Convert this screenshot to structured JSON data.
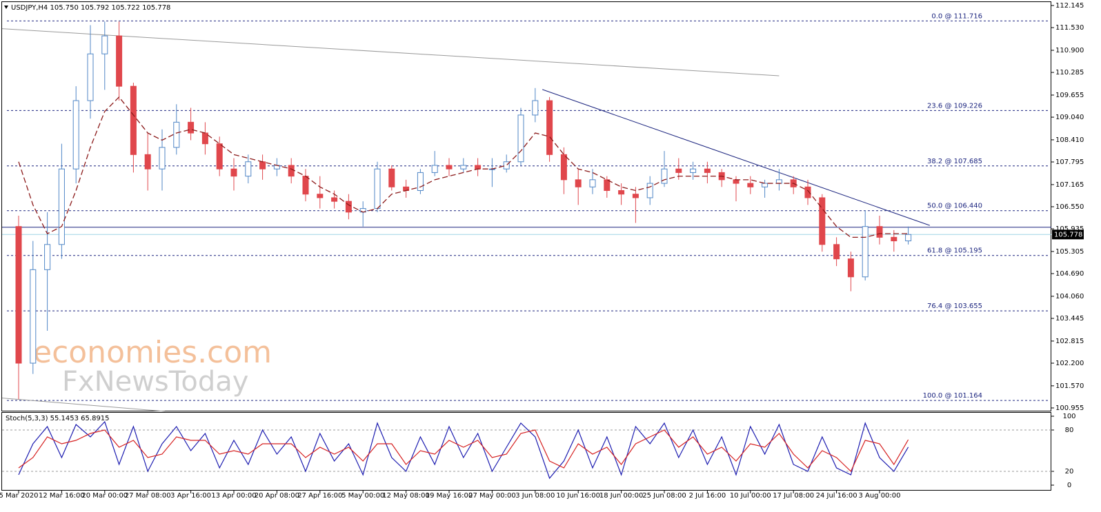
{
  "chart_data": {
    "type": "candlestick",
    "header": "USDJPY,H4  105.750 105.792 105.722 105.778",
    "watermark": [
      "economies.com",
      "FxNewsToday"
    ],
    "categories": [
      "5 Mar 2020",
      null,
      null,
      "12 Mar 16:00",
      null,
      null,
      "20 Mar 00:00",
      null,
      null,
      "27 Mar 08:00",
      null,
      null,
      "3 Apr 16:00",
      null,
      null,
      "13 Apr 00:00",
      null,
      null,
      "20 Apr 08:00",
      null,
      null,
      "27 Apr 16:00",
      null,
      null,
      "5 May 00:00",
      null,
      null,
      "12 May 08:00",
      null,
      null,
      "19 May 16:00",
      null,
      null,
      "27 May 00:00",
      null,
      null,
      "3 Jun 08:00",
      null,
      null,
      "10 Jun 16:00",
      null,
      null,
      "18 Jun 00:00",
      null,
      null,
      "25 Jun 08:00",
      null,
      null,
      "2 Jul 16:00",
      null,
      null,
      "10 Jul 00:00",
      null,
      null,
      "17 Jul 08:00",
      null,
      null,
      "24 Jul 16:00",
      null,
      null,
      "3 Aug 00:00",
      null,
      null
    ],
    "candles": {
      "open": [
        106.0,
        102.2,
        104.8,
        105.5,
        107.6,
        109.5,
        110.8,
        111.3,
        109.9,
        108.0,
        107.6,
        108.2,
        108.9,
        108.6,
        108.3,
        107.6,
        107.4,
        107.8,
        107.6,
        107.7,
        107.4,
        106.9,
        106.8,
        106.7,
        106.4,
        106.5,
        107.6,
        107.1,
        107.0,
        107.5,
        107.7,
        107.6,
        107.7,
        107.6,
        107.6,
        107.8,
        109.1,
        109.5,
        108.0,
        107.3,
        107.1,
        107.3,
        107.0,
        106.9,
        106.8,
        107.2,
        107.6,
        107.5,
        107.6,
        107.5,
        107.3,
        107.2,
        107.1,
        107.2,
        107.3,
        107.1,
        106.8,
        105.5,
        105.1,
        104.6,
        106.0,
        105.7,
        105.6
      ],
      "high": [
        106.3,
        105.6,
        106.4,
        108.3,
        109.9,
        111.6,
        111.7,
        111.7,
        110.0,
        108.6,
        108.7,
        109.4,
        109.3,
        108.9,
        108.5,
        107.9,
        108.0,
        108.0,
        107.9,
        107.9,
        107.6,
        107.4,
        107.0,
        106.9,
        106.7,
        107.8,
        107.7,
        107.3,
        107.6,
        108.1,
        107.9,
        107.9,
        107.9,
        107.9,
        108.0,
        109.3,
        109.85,
        109.6,
        108.2,
        107.6,
        107.6,
        107.4,
        107.2,
        107.1,
        107.4,
        108.1,
        107.9,
        107.8,
        107.8,
        107.6,
        107.4,
        107.4,
        107.3,
        107.6,
        107.4,
        107.3,
        106.9,
        105.7,
        105.3,
        106.45,
        106.3,
        105.9,
        106.0
      ],
      "low": [
        101.2,
        101.9,
        103.1,
        105.1,
        107.2,
        109.0,
        109.8,
        109.5,
        107.5,
        107.0,
        107.0,
        108.0,
        108.4,
        108.0,
        107.4,
        107.0,
        107.2,
        107.3,
        107.4,
        107.2,
        106.7,
        106.5,
        106.5,
        106.2,
        106.0,
        106.4,
        107.0,
        106.8,
        106.9,
        107.4,
        107.4,
        107.5,
        107.4,
        107.1,
        107.5,
        107.7,
        108.9,
        107.8,
        106.9,
        106.6,
        106.9,
        106.8,
        106.6,
        106.1,
        106.6,
        107.1,
        107.3,
        107.3,
        107.2,
        107.1,
        106.7,
        106.9,
        106.8,
        107.0,
        106.9,
        106.6,
        105.3,
        104.9,
        104.2,
        104.5,
        105.5,
        105.3,
        105.5
      ],
      "close": [
        102.2,
        104.8,
        105.5,
        107.6,
        109.5,
        110.8,
        111.3,
        109.9,
        108.0,
        107.6,
        108.2,
        108.9,
        108.6,
        108.3,
        107.6,
        107.4,
        107.8,
        107.6,
        107.7,
        107.4,
        106.9,
        106.8,
        106.7,
        106.4,
        106.5,
        107.6,
        107.1,
        107.0,
        107.5,
        107.7,
        107.6,
        107.7,
        107.6,
        107.6,
        107.8,
        109.1,
        109.5,
        108.0,
        107.3,
        107.1,
        107.3,
        107.0,
        106.9,
        106.8,
        107.2,
        107.6,
        107.5,
        107.6,
        107.5,
        107.3,
        107.2,
        107.1,
        107.2,
        107.3,
        107.1,
        106.8,
        105.5,
        105.1,
        104.6,
        106.0,
        105.7,
        105.6,
        105.778
      ]
    },
    "bull_color": "#4f86c6",
    "bear_color": "#e0474c",
    "ma": {
      "color": "#8b1a1a",
      "values": [
        107.8,
        106.6,
        105.8,
        106.0,
        107.0,
        108.2,
        109.2,
        109.6,
        109.1,
        108.6,
        108.4,
        108.6,
        108.7,
        108.6,
        108.3,
        108.0,
        107.9,
        107.8,
        107.7,
        107.6,
        107.4,
        107.1,
        106.9,
        106.6,
        106.4,
        106.5,
        106.9,
        107.0,
        107.1,
        107.3,
        107.4,
        107.5,
        107.6,
        107.6,
        107.7,
        108.1,
        108.6,
        108.5,
        108.0,
        107.6,
        107.5,
        107.3,
        107.1,
        107.0,
        107.1,
        107.3,
        107.4,
        107.4,
        107.4,
        107.4,
        107.3,
        107.3,
        107.2,
        107.2,
        107.2,
        107.0,
        106.5,
        106.0,
        105.7,
        105.7,
        105.8,
        105.8,
        105.8
      ]
    },
    "fib_levels": [
      {
        "value": 111.716,
        "label": "0.0 @ 111.716"
      },
      {
        "value": 109.226,
        "label": "23.6 @ 109.226"
      },
      {
        "value": 107.685,
        "label": "38.2 @ 107.685"
      },
      {
        "value": 106.44,
        "label": "50.0 @ 106.440"
      },
      {
        "value": 105.195,
        "label": "61.8 @ 105.195"
      },
      {
        "value": 103.655,
        "label": "76.4 @ 103.655"
      },
      {
        "value": 101.164,
        "label": "100.0 @ 101.164"
      }
    ],
    "fib_color": "#1a237e",
    "hline": {
      "value": 105.98,
      "color": "#1a237e"
    },
    "price_line": {
      "value": 105.778,
      "label": "105.778",
      "color": "#9fd3e6"
    },
    "trendlines": [
      {
        "from": [
          -1.3,
          111.5
        ],
        "to": [
          53,
          110.19
        ],
        "color": "#999999"
      },
      {
        "from": [
          36.5,
          109.81
        ],
        "to": [
          63.5,
          106.03
        ],
        "color": "#1a237e"
      },
      {
        "from": [
          -1.3,
          101.23
        ],
        "to": [
          10.2,
          100.86
        ],
        "color": "#999999"
      }
    ],
    "ylim": [
      100.878,
      112.26
    ],
    "yticks": [
      112.145,
      {
        "value": 111.53,
        "label": "111.530"
      },
      {
        "value": 110.9,
        "label": "110.900"
      },
      110.285,
      109.655,
      {
        "value": 109.04,
        "label": "109.040"
      },
      {
        "value": 108.41,
        "label": "108.410"
      },
      107.795,
      107.165,
      {
        "value": 106.55,
        "label": "106.550"
      },
      105.935,
      105.305,
      {
        "value": 104.69,
        "label": "104.690"
      },
      {
        "value": 104.06,
        "label": "104.060"
      },
      103.445,
      102.815,
      {
        "value": 102.2,
        "label": "102.200"
      },
      {
        "value": 101.57,
        "label": "101.570"
      },
      100.955
    ],
    "stoch": {
      "title": "Stoch(5,3,3) 55.1453 65.8915",
      "ylim": [
        -8,
        106
      ],
      "yticks": [
        0,
        20,
        80,
        100
      ],
      "levels": [
        20,
        80
      ],
      "series": [
        {
          "name": "Main",
          "color": "#1c1cb0",
          "values": [
            15,
            60,
            85,
            40,
            88,
            70,
            92,
            30,
            85,
            20,
            60,
            85,
            50,
            75,
            25,
            65,
            30,
            80,
            45,
            70,
            20,
            75,
            35,
            60,
            15,
            90,
            40,
            20,
            70,
            30,
            85,
            40,
            75,
            20,
            55,
            90,
            70,
            10,
            35,
            80,
            25,
            70,
            15,
            85,
            60,
            90,
            40,
            80,
            30,
            70,
            15,
            85,
            45,
            88,
            30,
            20,
            70,
            25,
            15,
            90,
            40,
            20,
            55.1453
          ]
        },
        {
          "name": "Signal",
          "color": "#d62020",
          "values": [
            25,
            40,
            70,
            60,
            65,
            75,
            80,
            55,
            65,
            40,
            45,
            70,
            65,
            65,
            45,
            50,
            45,
            60,
            60,
            60,
            40,
            55,
            45,
            55,
            35,
            60,
            60,
            30,
            50,
            45,
            65,
            55,
            65,
            40,
            45,
            75,
            80,
            35,
            25,
            60,
            45,
            55,
            30,
            60,
            70,
            80,
            55,
            70,
            45,
            55,
            35,
            60,
            55,
            75,
            45,
            25,
            50,
            40,
            20,
            65,
            60,
            30,
            65.8915
          ]
        }
      ]
    }
  }
}
